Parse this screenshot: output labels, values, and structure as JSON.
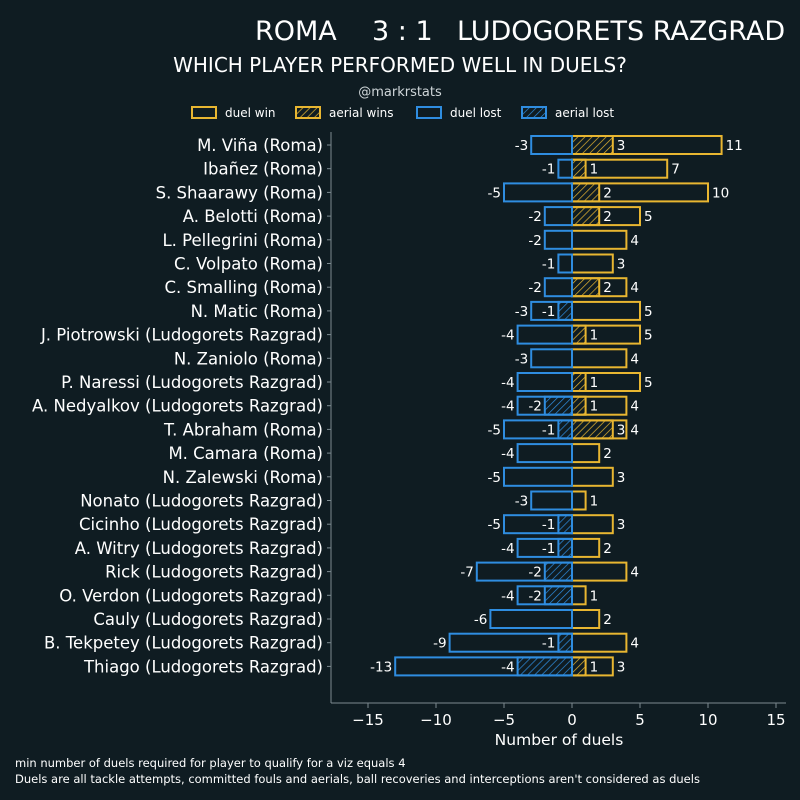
{
  "title": {
    "home": "ROMA",
    "score": "3 : 1",
    "away": "LUDOGORETS RAZGRAD"
  },
  "subtitle": "WHICH PLAYER PERFORMED WELL IN DUELS?",
  "handle": "@markrstats",
  "legend": [
    "duel win",
    "aerial wins",
    "duel lost",
    "aerial lost"
  ],
  "colors": {
    "background": "#0f1c22",
    "win": "#e8b631",
    "lost": "#2f8de0",
    "axis": "#7c8a90"
  },
  "footnotes": [
    "min number of duels required for player to qualify for a viz equals 4",
    "Duels are all tackle attempts, committed fouls and aerials, ball recoveries and interceptions aren't considered as duels"
  ],
  "chart_data": {
    "type": "bar",
    "orientation": "horizontal-diverging",
    "xlabel": "Number of duels",
    "xlim": [
      -18,
      16
    ],
    "xticks": [
      -15,
      -10,
      -5,
      0,
      5,
      10,
      15
    ],
    "xtick_labels": [
      "−15",
      "−10",
      "−5",
      "0",
      "5",
      "10",
      "15"
    ],
    "categories": [
      "M. Viña (Roma)",
      "Ibañez (Roma)",
      "S. Shaarawy (Roma)",
      "A. Belotti (Roma)",
      "L. Pellegrini (Roma)",
      "C. Volpato (Roma)",
      "C. Smalling (Roma)",
      "N. Matic (Roma)",
      "J. Piotrowski (Ludogorets Razgrad)",
      "N. Zaniolo (Roma)",
      "P. Naressi (Ludogorets Razgrad)",
      "A. Nedyalkov (Ludogorets Razgrad)",
      "T. Abraham (Roma)",
      "M. Camara (Roma)",
      "N. Zalewski (Roma)",
      "Nonato (Ludogorets Razgrad)",
      "Cicinho (Ludogorets Razgrad)",
      "A. Witry (Ludogorets Razgrad)",
      "Rick (Ludogorets Razgrad)",
      "O. Verdon (Ludogorets Razgrad)",
      "Cauly (Ludogorets Razgrad)",
      "B. Tekpetey (Ludogorets Razgrad)",
      "Thiago (Ludogorets Razgrad)"
    ],
    "series": [
      {
        "name": "duel win",
        "values": [
          11,
          7,
          10,
          5,
          4,
          3,
          4,
          5,
          5,
          4,
          5,
          4,
          4,
          2,
          3,
          1,
          3,
          2,
          4,
          1,
          2,
          4,
          3
        ]
      },
      {
        "name": "aerial wins",
        "values": [
          3,
          1,
          2,
          2,
          0,
          0,
          2,
          0,
          1,
          0,
          1,
          1,
          3,
          0,
          0,
          0,
          0,
          0,
          0,
          0,
          0,
          0,
          1
        ]
      },
      {
        "name": "duel lost",
        "values": [
          -3,
          -1,
          -5,
          -2,
          -2,
          -1,
          -2,
          -3,
          -4,
          -3,
          -4,
          -4,
          -5,
          -4,
          -5,
          -3,
          -5,
          -4,
          -7,
          -4,
          -6,
          -9,
          -13
        ]
      },
      {
        "name": "aerial lost",
        "values": [
          0,
          0,
          0,
          0,
          0,
          0,
          0,
          -1,
          0,
          0,
          0,
          -2,
          -1,
          0,
          0,
          0,
          -1,
          -1,
          -2,
          -2,
          0,
          -1,
          -4
        ]
      }
    ],
    "value_labels": {
      "duel_win": [
        "11",
        "7",
        "10",
        "5",
        "4",
        "3",
        "4",
        "5",
        "5",
        "4",
        "5",
        "4",
        "4",
        "2",
        "3",
        "1",
        "3",
        "2",
        "4",
        "1",
        "2",
        "4",
        "3"
      ],
      "aerial_win": [
        "3",
        "1",
        "2",
        "2",
        "",
        "",
        "2",
        "",
        "1",
        "",
        "1",
        "1",
        "3",
        "",
        "",
        "",
        "",
        "",
        "",
        "",
        "",
        "",
        "1"
      ],
      "duel_lost": [
        "-3",
        "-1",
        "-5",
        "-2",
        "-2",
        "-1",
        "-2",
        "-3",
        "-4",
        "-3",
        "-4",
        "-4",
        "-5",
        "-4",
        "-5",
        "-3",
        "-5",
        "-4",
        "-7",
        "-4",
        "-6",
        "-9",
        "-13"
      ],
      "aerial_lost": [
        "",
        "",
        "",
        "",
        "",
        "",
        "",
        "-1",
        "",
        "",
        "",
        "-2",
        "-1",
        "",
        "",
        "",
        "-1",
        "-1",
        "-2",
        "-2",
        "",
        "-1",
        "-4"
      ]
    }
  }
}
